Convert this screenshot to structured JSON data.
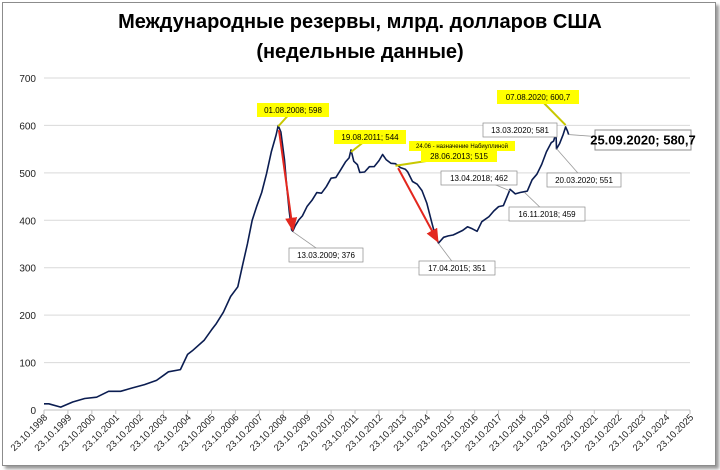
{
  "title_line1": "Международные резервы, млрд. долларов США",
  "title_line2": "(недельные данные)",
  "colors": {
    "line": "#0b1d51",
    "arrow": "#e3271e",
    "label_yellow": "#ffff00",
    "grid": "#d9d9d9"
  },
  "chart_data": {
    "type": "line",
    "ylim": [
      0,
      700
    ],
    "yticks": [
      "0",
      "100",
      "200",
      "300",
      "400",
      "500",
      "600",
      "700"
    ],
    "xticks": [
      "23.10.1998",
      "23.10.1999",
      "23.10.2000",
      "23.10.2001",
      "23.10.2002",
      "23.10.2003",
      "23.10.2004",
      "23.10.2005",
      "23.10.2006",
      "23.10.2007",
      "23.10.2008",
      "23.10.2009",
      "23.10.2010",
      "23.10.2011",
      "23.10.2012",
      "23.10.2013",
      "23.10.2014",
      "23.10.2015",
      "23.10.2016",
      "23.10.2017",
      "23.10.2018",
      "23.10.2019",
      "23.10.2020",
      "23.10.2021",
      "23.10.2022",
      "23.10.2023",
      "23.10.2024",
      "23.10.2025"
    ],
    "grid": true,
    "series": [
      {
        "points": [
          [
            1998.8,
            13
          ],
          [
            1999.0,
            12
          ],
          [
            1999.5,
            11
          ],
          [
            2000.0,
            17
          ],
          [
            2000.5,
            25
          ],
          [
            2001.0,
            30
          ],
          [
            2001.5,
            36
          ],
          [
            2002.0,
            39
          ],
          [
            2002.5,
            46
          ],
          [
            2003.0,
            49
          ],
          [
            2003.5,
            64
          ],
          [
            2003.8,
            73
          ],
          [
            2004.0,
            80
          ],
          [
            2004.5,
            90
          ],
          [
            2004.8,
            117
          ],
          [
            2005.0,
            126
          ],
          [
            2005.5,
            150
          ],
          [
            2005.8,
            165
          ],
          [
            2006.0,
            182
          ],
          [
            2006.3,
            205
          ],
          [
            2006.6,
            235
          ],
          [
            2006.9,
            262
          ],
          [
            2007.1,
            305
          ],
          [
            2007.3,
            350
          ],
          [
            2007.5,
            405
          ],
          [
            2007.7,
            430
          ],
          [
            2007.9,
            460
          ],
          [
            2008.1,
            500
          ],
          [
            2008.3,
            540
          ],
          [
            2008.5,
            580
          ],
          [
            2008.59,
            598
          ],
          [
            2008.7,
            582
          ],
          [
            2008.85,
            530
          ],
          [
            2008.95,
            470
          ],
          [
            2009.05,
            420
          ],
          [
            2009.15,
            385
          ],
          [
            2009.2,
            376
          ],
          [
            2009.3,
            390
          ],
          [
            2009.45,
            402
          ],
          [
            2009.6,
            405
          ],
          [
            2009.8,
            430
          ],
          [
            2010.0,
            440
          ],
          [
            2010.2,
            455
          ],
          [
            2010.4,
            460
          ],
          [
            2010.6,
            470
          ],
          [
            2010.8,
            490
          ],
          [
            2011.0,
            495
          ],
          [
            2011.2,
            505
          ],
          [
            2011.4,
            525
          ],
          [
            2011.55,
            532
          ],
          [
            2011.63,
            544
          ],
          [
            2011.75,
            525
          ],
          [
            2011.9,
            515
          ],
          [
            2012.0,
            498
          ],
          [
            2012.2,
            505
          ],
          [
            2012.4,
            512
          ],
          [
            2012.6,
            515
          ],
          [
            2012.8,
            530
          ],
          [
            2012.95,
            537
          ],
          [
            2013.1,
            530
          ],
          [
            2013.3,
            520
          ],
          [
            2013.49,
            515
          ],
          [
            2013.7,
            512
          ],
          [
            2013.9,
            505
          ],
          [
            2014.0,
            500
          ],
          [
            2014.2,
            485
          ],
          [
            2014.4,
            475
          ],
          [
            2014.6,
            465
          ],
          [
            2014.8,
            440
          ],
          [
            2015.0,
            395
          ],
          [
            2015.15,
            370
          ],
          [
            2015.29,
            351
          ],
          [
            2015.5,
            360
          ],
          [
            2015.7,
            368
          ],
          [
            2015.9,
            366
          ],
          [
            2016.0,
            370
          ],
          [
            2016.3,
            382
          ],
          [
            2016.5,
            385
          ],
          [
            2016.7,
            385
          ],
          [
            2016.9,
            380
          ],
          [
            2017.1,
            395
          ],
          [
            2017.4,
            410
          ],
          [
            2017.6,
            418
          ],
          [
            2017.8,
            425
          ],
          [
            2018.0,
            432
          ],
          [
            2018.28,
            462
          ],
          [
            2018.5,
            455
          ],
          [
            2018.7,
            462
          ],
          [
            2018.88,
            459
          ],
          [
            2019.0,
            465
          ],
          [
            2019.2,
            488
          ],
          [
            2019.4,
            495
          ],
          [
            2019.6,
            520
          ],
          [
            2019.8,
            542
          ],
          [
            2020.0,
            560
          ],
          [
            2020.1,
            568
          ],
          [
            2020.2,
            581
          ],
          [
            2020.22,
            551
          ],
          [
            2020.35,
            565
          ],
          [
            2020.5,
            580
          ],
          [
            2020.6,
            600.7
          ],
          [
            2020.68,
            590
          ],
          [
            2020.73,
            580.7
          ]
        ]
      }
    ],
    "annotations": [
      {
        "text": "01.08.2008; 598",
        "style": "yellow"
      },
      {
        "text": "13.03.2009; 376",
        "style": "plain"
      },
      {
        "text": "19.08.2011; 544",
        "style": "yellow"
      },
      {
        "text": "24.06 - назначение Набиуллиной",
        "style": "yellow-small"
      },
      {
        "text": "28.06.2013; 515",
        "style": "yellow"
      },
      {
        "text": "17.04.2015; 351",
        "style": "plain"
      },
      {
        "text": "13.04.2018; 462",
        "style": "plain"
      },
      {
        "text": "16.11.2018; 459",
        "style": "plain"
      },
      {
        "text": "13.03.2020; 581",
        "style": "plain"
      },
      {
        "text": "07.08.2020; 600,7",
        "style": "yellow"
      },
      {
        "text": "20.03.2020; 551",
        "style": "plain"
      },
      {
        "text": "25.09.2020; 580,7",
        "style": "big"
      }
    ]
  }
}
